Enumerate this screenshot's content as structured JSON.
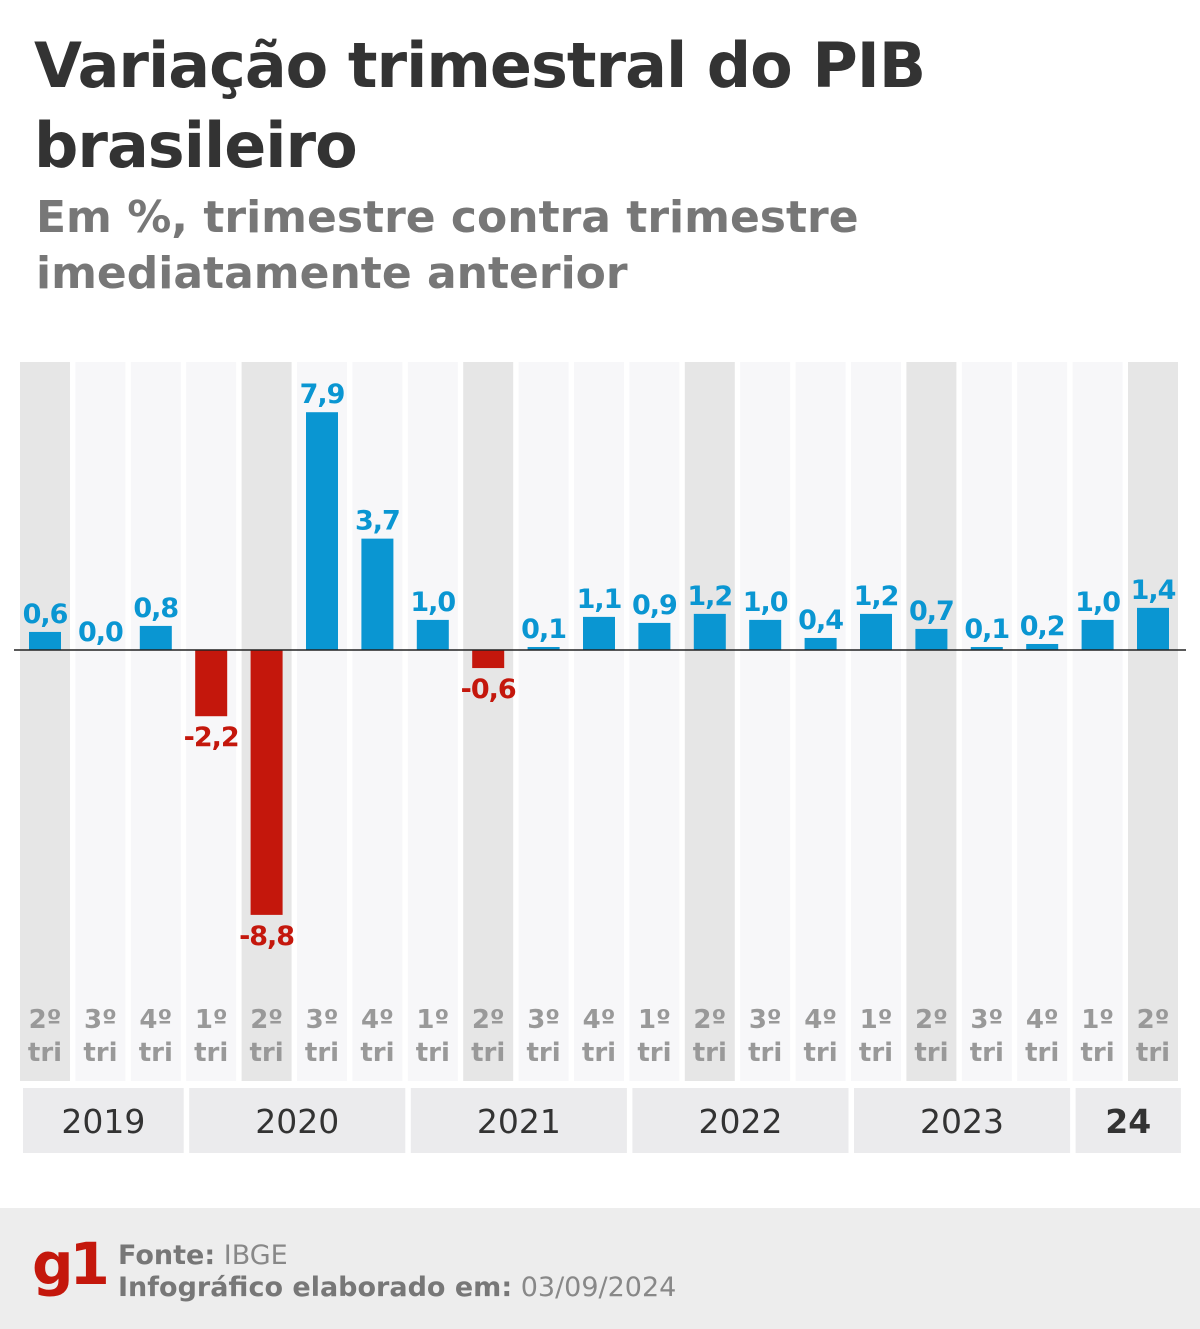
{
  "chart_data": {
    "type": "bar",
    "title": "Variação trimestral do PIB brasileiro",
    "subtitle": "Em %, trimestre contra trimestre imediatamente anterior",
    "categories": [
      "2º tri",
      "3º tri",
      "4º tri",
      "1º tri",
      "2º tri",
      "3º tri",
      "4º tri",
      "1º tri",
      "2º tri",
      "3º tri",
      "4º tri",
      "1º tri",
      "2º tri",
      "3º tri",
      "4º tri",
      "1º tri",
      "2º tri",
      "3º tri",
      "4º tri",
      "1º tri",
      "2º tri"
    ],
    "values": [
      0.6,
      0.0,
      0.8,
      -2.2,
      -8.8,
      7.9,
      3.7,
      1.0,
      -0.6,
      0.1,
      1.1,
      0.9,
      1.2,
      1.0,
      0.4,
      1.2,
      0.7,
      0.1,
      0.2,
      1.0,
      1.4
    ],
    "labels": [
      "0,6",
      "0,0",
      "0,8",
      "-2,2",
      "-8,8",
      "7,9",
      "3,7",
      "1,0",
      "-0,6",
      "0,1",
      "1,1",
      "0,9",
      "1,2",
      "1,0",
      "0,4",
      "1,2",
      "0,7",
      "0,1",
      "0,2",
      "1,0",
      "1,4"
    ],
    "years": [
      {
        "label": "2019",
        "count": 3,
        "bold": false
      },
      {
        "label": "2020",
        "count": 4,
        "bold": false
      },
      {
        "label": "2021",
        "count": 4,
        "bold": false
      },
      {
        "label": "2022",
        "count": 4,
        "bold": false
      },
      {
        "label": "2023",
        "count": 4,
        "bold": false
      },
      {
        "label": "24",
        "count": 2,
        "bold": true
      }
    ],
    "ylim": [
      -9.5,
      9.5
    ],
    "grid": false,
    "colors": {
      "positive": "#0a96d2",
      "negative": "#c4170c",
      "column_dark": "#e6e6e6",
      "column_light": "#f7f7f9",
      "year_band": "#ebebed"
    }
  },
  "footer": {
    "logo": "g1",
    "source_label": "Fonte:",
    "source_value": "IBGE",
    "made_label": "Infográfico elaborado em:",
    "made_value": "03/09/2024"
  }
}
